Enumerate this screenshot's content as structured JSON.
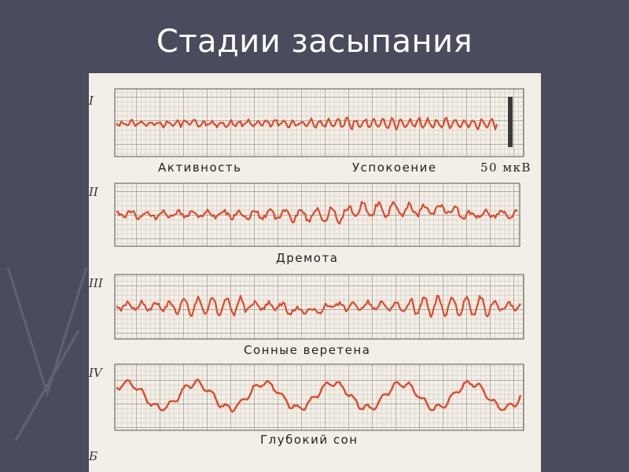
{
  "title": "Стадии засыпания",
  "figure": {
    "scale_label": "50 мкВ",
    "panels": [
      {
        "numeral": "I",
        "captions": [
          "Активность",
          "Успокоение"
        ]
      },
      {
        "numeral": "II",
        "captions": [
          "Дремота"
        ]
      },
      {
        "numeral": "III",
        "captions": [
          "Сонные веретена"
        ]
      },
      {
        "numeral": "IV",
        "captions": [
          "Глубокий сон"
        ]
      }
    ],
    "footer_label": "Б"
  },
  "colors": {
    "background": "#4a4c5d",
    "paper": "#f3efe6",
    "grid": "#8c8c8c",
    "trace": "#e0492a"
  }
}
